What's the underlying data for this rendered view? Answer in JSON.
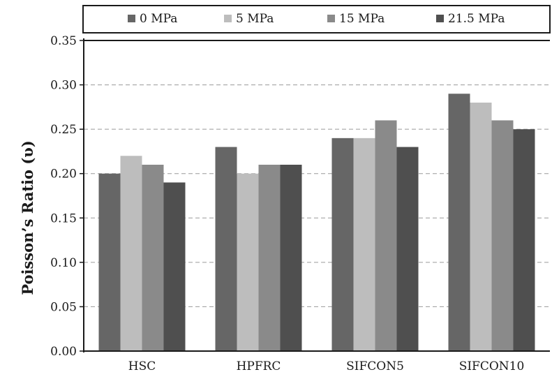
{
  "chart_data": {
    "type": "bar",
    "title": "",
    "xlabel": "",
    "ylabel": "Poisson’s Ratio (υ)",
    "ylim": [
      0,
      0.35
    ],
    "yticks": [
      "0.00",
      "0.05",
      "0.10",
      "0.15",
      "0.20",
      "0.25",
      "0.30",
      "0.35"
    ],
    "grid": "horizontal dashed",
    "legend_position": "top",
    "categories": [
      "HSC",
      "HPFRC",
      "SIFCON5",
      "SIFCON10"
    ],
    "series": [
      {
        "name": "0 MPa",
        "color": "#666666",
        "values": [
          0.2,
          0.23,
          0.24,
          0.29
        ]
      },
      {
        "name": "5 MPa",
        "color": "#bdbdbd",
        "values": [
          0.22,
          0.2,
          0.24,
          0.28
        ]
      },
      {
        "name": "15 MPa",
        "color": "#8a8a8a",
        "values": [
          0.21,
          0.21,
          0.26,
          0.26
        ]
      },
      {
        "name": "21.5 MPa",
        "color": "#4f4f4f",
        "values": [
          0.19,
          0.21,
          0.23,
          0.25
        ]
      }
    ]
  }
}
